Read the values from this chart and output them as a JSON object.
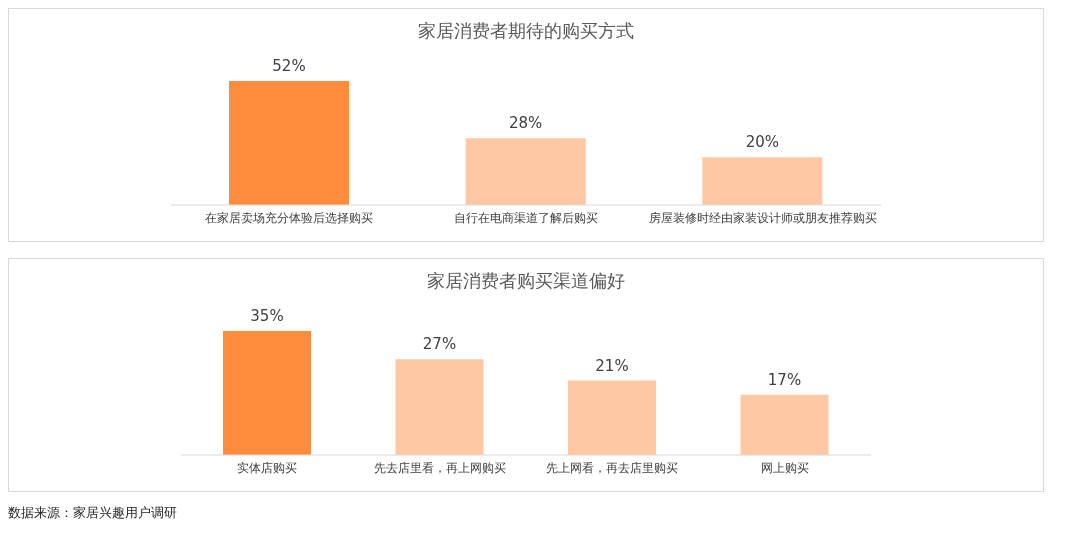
{
  "chart_data": [
    {
      "type": "bar",
      "title": "家居消费者期待的购买方式",
      "categories": [
        "在家居卖场充分体验后选择购买",
        "自行在电商渠道了解后购买",
        "房屋装修时经由家装设计师或朋友推荐购买"
      ],
      "values": [
        52,
        28,
        20
      ],
      "colors": [
        "#ff8c3c",
        "#fec8a4",
        "#fec8a4"
      ],
      "value_labels": [
        "52%",
        "28%",
        "20%"
      ]
    },
    {
      "type": "bar",
      "title": "家居消费者购买渠道偏好",
      "categories": [
        "实体店购买",
        "先去店里看，再上网购买",
        "先上网看，再去店里购买",
        "网上购买"
      ],
      "values": [
        35,
        27,
        21,
        17
      ],
      "colors": [
        "#ff8c3c",
        "#fec8a4",
        "#fec8a4",
        "#fec8a4"
      ],
      "value_labels": [
        "35%",
        "27%",
        "21%",
        "17%"
      ],
      "annotations": [
        "数据来源：家居兴趣用户调研"
      ]
    }
  ]
}
